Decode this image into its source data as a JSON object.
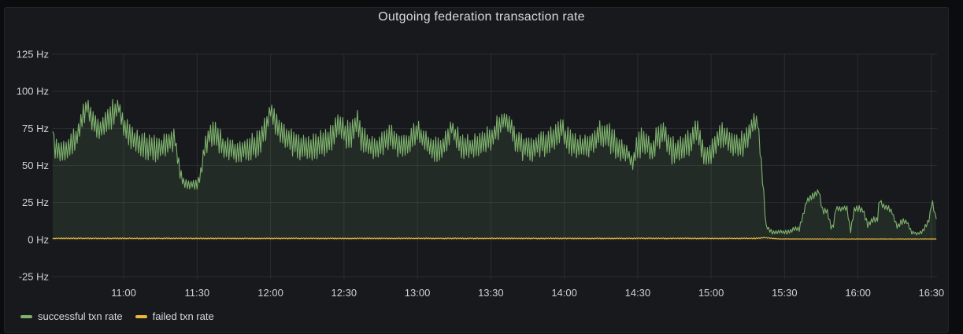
{
  "panel": {
    "title": "Outgoing federation transaction rate"
  },
  "colors": {
    "page_background": "#0b0c0e",
    "panel_background": "#17191d",
    "text": "#d8d9da",
    "axis_text": "#d0d1d2",
    "grid": "#3b3d40",
    "success_green": "#7eb26d",
    "failed_yellow": "#eab839"
  },
  "legend": {
    "items": [
      {
        "label": "successful txn rate",
        "color": "#7eb26d"
      },
      {
        "label": "failed txn rate",
        "color": "#eab839"
      }
    ]
  },
  "chart_data": {
    "type": "line",
    "title": "Outgoing federation transaction rate",
    "xlabel": "",
    "ylabel": "Hz",
    "ylim": [
      -25,
      125
    ],
    "grid": true,
    "legend_position": "bottom-left",
    "time_range": {
      "start": "10:30",
      "end": "16:32"
    },
    "y_ticks": [
      {
        "v": 125,
        "label": "125 Hz"
      },
      {
        "v": 100,
        "label": "100 Hz"
      },
      {
        "v": 75,
        "label": "75 Hz"
      },
      {
        "v": 50,
        "label": "50 Hz"
      },
      {
        "v": 25,
        "label": "25 Hz"
      },
      {
        "v": 0,
        "label": "0 Hz"
      },
      {
        "v": -25,
        "label": "-25 Hz"
      }
    ],
    "x_ticks": [
      {
        "t": 30,
        "label": "11:00"
      },
      {
        "t": 60,
        "label": "11:30"
      },
      {
        "t": 90,
        "label": "12:00"
      },
      {
        "t": 120,
        "label": "12:30"
      },
      {
        "t": 150,
        "label": "13:00"
      },
      {
        "t": 180,
        "label": "13:30"
      },
      {
        "t": 210,
        "label": "14:00"
      },
      {
        "t": 240,
        "label": "14:30"
      },
      {
        "t": 270,
        "label": "15:00"
      },
      {
        "t": 300,
        "label": "15:30"
      },
      {
        "t": 330,
        "label": "16:00"
      },
      {
        "t": 360,
        "label": "16:30"
      }
    ],
    "noise_seed": 1337,
    "sample_step_min": 0.5,
    "series": [
      {
        "name": "successful txn rate",
        "color": "#7eb26d",
        "fill": true,
        "fill_opacity": 0.12,
        "anchor_format": [
          "minutes_after_10_30",
          "mean_hz",
          "oscillation_amp_hz"
        ],
        "anchors": [
          [
            1,
            74,
            2
          ],
          [
            2,
            62,
            8
          ],
          [
            4,
            59,
            8
          ],
          [
            8,
            62,
            9
          ],
          [
            11,
            70,
            9
          ],
          [
            13,
            82,
            9
          ],
          [
            15,
            90,
            8
          ],
          [
            17,
            79,
            9
          ],
          [
            20,
            74,
            10
          ],
          [
            23,
            79,
            10
          ],
          [
            26,
            86,
            10
          ],
          [
            28,
            90,
            8
          ],
          [
            30,
            76,
            10
          ],
          [
            33,
            69,
            10
          ],
          [
            36,
            64,
            10
          ],
          [
            40,
            63,
            10
          ],
          [
            44,
            61,
            9
          ],
          [
            48,
            66,
            9
          ],
          [
            51,
            67,
            8
          ],
          [
            53,
            45,
            5
          ],
          [
            54.5,
            38,
            4
          ],
          [
            60,
            37,
            4
          ],
          [
            61.5,
            45,
            5
          ],
          [
            63,
            62,
            8
          ],
          [
            65,
            71,
            9
          ],
          [
            68,
            70,
            10
          ],
          [
            71,
            62,
            9
          ],
          [
            75,
            60,
            9
          ],
          [
            79,
            61,
            9
          ],
          [
            83,
            63,
            10
          ],
          [
            86,
            66,
            10
          ],
          [
            88.5,
            78,
            9
          ],
          [
            90,
            89,
            8
          ],
          [
            92,
            80,
            9
          ],
          [
            95,
            72,
            10
          ],
          [
            98,
            67,
            10
          ],
          [
            102,
            63,
            10
          ],
          [
            106,
            61,
            9
          ],
          [
            110,
            64,
            10
          ],
          [
            113,
            67,
            10
          ],
          [
            116,
            71,
            10
          ],
          [
            118,
            78,
            9
          ],
          [
            120,
            72,
            10
          ],
          [
            123,
            69,
            10
          ],
          [
            125.5,
            80,
            10
          ],
          [
            127,
            70,
            10
          ],
          [
            130,
            63,
            10
          ],
          [
            134,
            61,
            9
          ],
          [
            137,
            67,
            10
          ],
          [
            139,
            69,
            9
          ],
          [
            142,
            64,
            9
          ],
          [
            145,
            62,
            9
          ],
          [
            148,
            68,
            9
          ],
          [
            150,
            74,
            8
          ],
          [
            152,
            68,
            9
          ],
          [
            155,
            62,
            9
          ],
          [
            159,
            60,
            9
          ],
          [
            162,
            66,
            9
          ],
          [
            164,
            77,
            8
          ],
          [
            166,
            68,
            9
          ],
          [
            169,
            62,
            9
          ],
          [
            173,
            63,
            9
          ],
          [
            177,
            66,
            10
          ],
          [
            180,
            68,
            10
          ],
          [
            183,
            76,
            9
          ],
          [
            185.5,
            81,
            7
          ],
          [
            188,
            78,
            8
          ],
          [
            190,
            68,
            9
          ],
          [
            193,
            62,
            9
          ],
          [
            197,
            61,
            9
          ],
          [
            200,
            64,
            9
          ],
          [
            203,
            66,
            10
          ],
          [
            207,
            70,
            9
          ],
          [
            209,
            74,
            8
          ],
          [
            211,
            68,
            9
          ],
          [
            214,
            63,
            9
          ],
          [
            218,
            62,
            10
          ],
          [
            221,
            66,
            10
          ],
          [
            224,
            71,
            10
          ],
          [
            227,
            72,
            10
          ],
          [
            230,
            65,
            10
          ],
          [
            233,
            62,
            9
          ],
          [
            236,
            58,
            7
          ],
          [
            238,
            52,
            5
          ],
          [
            240,
            64,
            10
          ],
          [
            243,
            68,
            11
          ],
          [
            245.5,
            58,
            9
          ],
          [
            248,
            68,
            10
          ],
          [
            251,
            72,
            9
          ],
          [
            253.5,
            60,
            10
          ],
          [
            256,
            60,
            10
          ],
          [
            259,
            62,
            10
          ],
          [
            262,
            68,
            10
          ],
          [
            264,
            75,
            8
          ],
          [
            266.5,
            62,
            10
          ],
          [
            268,
            55,
            8
          ],
          [
            270,
            60,
            9
          ],
          [
            273,
            70,
            9
          ],
          [
            275,
            71,
            9
          ],
          [
            278,
            63,
            9
          ],
          [
            281,
            62,
            9
          ],
          [
            284,
            67,
            10
          ],
          [
            287,
            77,
            9
          ],
          [
            289,
            81,
            7
          ],
          [
            290.3,
            55,
            6
          ],
          [
            291.5,
            30,
            4
          ],
          [
            292.5,
            9,
            2
          ],
          [
            295,
            5,
            1.5
          ],
          [
            302,
            5,
            1.5
          ],
          [
            304,
            8,
            2
          ],
          [
            306,
            7,
            1.5
          ],
          [
            309,
            26,
            3
          ],
          [
            312,
            30,
            3
          ],
          [
            314,
            33,
            2
          ],
          [
            315.5,
            20,
            3
          ],
          [
            317.5,
            19,
            3
          ],
          [
            319,
            8,
            2
          ],
          [
            320,
            10,
            2
          ],
          [
            321,
            21,
            2
          ],
          [
            325.5,
            21,
            2
          ],
          [
            327,
            6,
            1.5
          ],
          [
            328.5,
            20,
            2
          ],
          [
            330,
            21,
            2.5
          ],
          [
            332,
            20,
            2
          ],
          [
            334,
            10,
            2
          ],
          [
            336,
            13,
            2.5
          ],
          [
            338,
            14,
            2
          ],
          [
            338.8,
            28,
            2
          ],
          [
            340,
            23,
            2
          ],
          [
            342.5,
            21,
            2
          ],
          [
            344,
            18,
            2
          ],
          [
            346,
            9,
            2
          ],
          [
            348,
            12,
            2.5
          ],
          [
            350,
            12,
            2
          ],
          [
            352,
            5,
            1.5
          ],
          [
            354,
            4,
            1
          ],
          [
            356,
            5,
            1.5
          ],
          [
            357.8,
            9,
            2
          ],
          [
            359,
            13,
            2
          ],
          [
            360.3,
            27,
            1.5
          ],
          [
            361.3,
            17,
            2
          ],
          [
            362,
            15,
            2
          ]
        ]
      },
      {
        "name": "failed txn rate",
        "color": "#eab839",
        "fill": false,
        "fill_opacity": 0,
        "anchor_format": [
          "minutes_after_10_30",
          "mean_hz",
          "oscillation_amp_hz"
        ],
        "anchors": [
          [
            1,
            0.8,
            0.4
          ],
          [
            288,
            0.8,
            0.4
          ],
          [
            292,
            1.3,
            0.3
          ],
          [
            298,
            0.4,
            0.2
          ],
          [
            362,
            0.4,
            0.2
          ]
        ]
      }
    ]
  }
}
